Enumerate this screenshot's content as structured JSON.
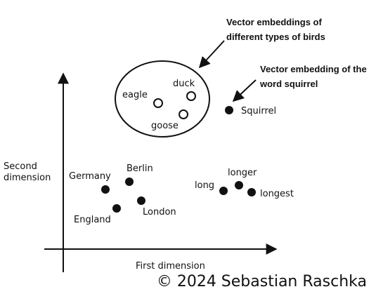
{
  "colors": {
    "ink": "#111111",
    "background": "#ffffff"
  },
  "axes": {
    "x_label": "First dimension",
    "y_label_lines": [
      "Second",
      "dimension"
    ]
  },
  "annotations": {
    "birds_lines": [
      "Vector embeddings of",
      "different types of birds"
    ],
    "squirrel_lines": [
      "Vector embedding of the",
      "word squirrel"
    ]
  },
  "points": {
    "eagle": {
      "label": "eagle",
      "marker": "hollow"
    },
    "duck": {
      "label": "duck",
      "marker": "hollow"
    },
    "goose": {
      "label": "goose",
      "marker": "hollow"
    },
    "squirrel": {
      "label": "Squirrel",
      "marker": "filled"
    },
    "germany": {
      "label": "Germany",
      "marker": "filled"
    },
    "berlin": {
      "label": "Berlin",
      "marker": "filled"
    },
    "england": {
      "label": "England",
      "marker": "filled"
    },
    "london": {
      "label": "London",
      "marker": "filled"
    },
    "long": {
      "label": "long",
      "marker": "filled"
    },
    "longer": {
      "label": "longer",
      "marker": "filled"
    },
    "longest": {
      "label": "longest",
      "marker": "filled"
    }
  },
  "credit": "© 2024 Sebastian Raschka"
}
